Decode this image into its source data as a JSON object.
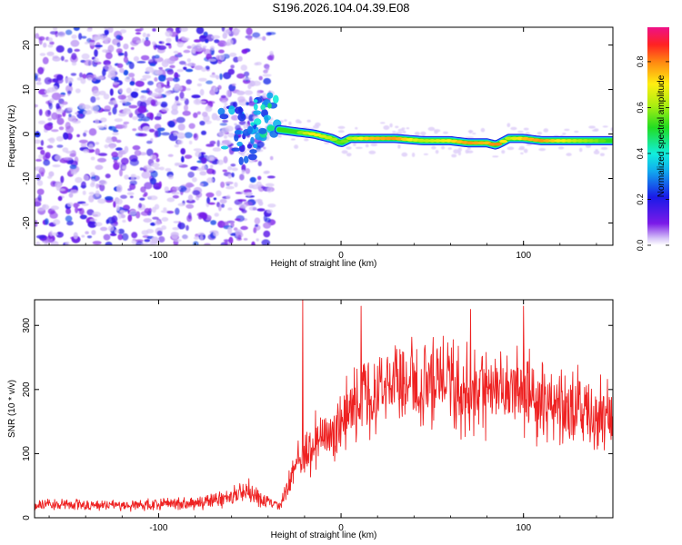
{
  "title": "S196.2026.104.04.39.E08",
  "colors": {
    "snr_line": "#ee2222",
    "background": "#ffffff"
  },
  "chart_data": [
    {
      "type": "heatmap",
      "title": "",
      "xlabel": "Height of straight line (km)",
      "ylabel": "Frequency (Hz)",
      "xlim": [
        -168,
        149
      ],
      "ylim": [
        -25,
        24
      ],
      "xticks": [
        -100,
        0,
        100
      ],
      "xtick_labels": [
        "-100",
        "0",
        "100"
      ],
      "yticks": [
        -20,
        -10,
        0,
        10,
        20
      ],
      "ytick_labels": [
        "-20",
        "-10",
        "0",
        "10",
        "20"
      ],
      "grid": false,
      "colorbar": {
        "label": "Normalized spectral amplitude",
        "range": [
          0,
          0.95
        ],
        "ticks": [
          0.0,
          0.2,
          0.4,
          0.6,
          0.8
        ],
        "tick_labels": [
          "0.0",
          "0.2",
          "0.4",
          "0.6",
          "0.8"
        ],
        "colormap": "rainbow (violet to red)"
      },
      "noise_region": {
        "x_range": [
          -168,
          -38
        ],
        "amplitude_range": [
          0.0,
          0.25
        ]
      },
      "transition_blobs": [
        {
          "x": -60,
          "y": 1,
          "amplitude": 0.3
        },
        {
          "x": -53,
          "y": -2,
          "amplitude": 0.28
        },
        {
          "x": -46,
          "y": 3,
          "amplitude": 0.35
        },
        {
          "x": -40,
          "y": 5,
          "amplitude": 0.4
        }
      ],
      "ridge": {
        "x": [
          -34,
          -25,
          -15,
          -5,
          0,
          5,
          15,
          30,
          45,
          60,
          70,
          80,
          85,
          92,
          100,
          110,
          120,
          130,
          140,
          149
        ],
        "y": [
          1,
          0.5,
          0,
          -1,
          -2,
          -1,
          -1,
          -1,
          -1.5,
          -1.5,
          -2,
          -2,
          -2.5,
          -1,
          -1,
          -1.5,
          -1.5,
          -1.5,
          -1.5,
          -1.5
        ],
        "amplitude": [
          0.35,
          0.6,
          0.8,
          0.7,
          0.6,
          0.7,
          0.85,
          0.9,
          0.7,
          0.8,
          0.9,
          0.85,
          0.95,
          0.7,
          0.85,
          0.9,
          0.8,
          0.7,
          0.65,
          0.55
        ]
      }
    },
    {
      "type": "line",
      "title": "",
      "xlabel": "Height of straight line (km)",
      "ylabel": "SNR (10 * v/v)",
      "xlim": [
        -168,
        149
      ],
      "ylim": [
        0,
        340
      ],
      "xticks": [
        -100,
        0,
        100
      ],
      "xtick_labels": [
        "-100",
        "0",
        "100"
      ],
      "yticks": [
        0,
        100,
        200,
        300
      ],
      "ytick_labels": [
        "0",
        "100",
        "200",
        "300"
      ],
      "grid": false,
      "series": [
        {
          "name": "SNR",
          "envelope_x": [
            -168,
            -120,
            -80,
            -60,
            -50,
            -40,
            -34,
            -28,
            -22,
            -15,
            -5,
            0,
            10,
            20,
            30,
            40,
            50,
            60,
            70,
            80,
            90,
            100,
            110,
            120,
            130,
            140,
            149
          ],
          "envelope_y": [
            20,
            20,
            22,
            32,
            42,
            25,
            18,
            60,
            95,
            110,
            130,
            150,
            180,
            200,
            205,
            210,
            215,
            210,
            205,
            200,
            195,
            200,
            180,
            170,
            165,
            160,
            155
          ],
          "spikes": [
            {
              "x": -21,
              "y": 340
            },
            {
              "x": 11,
              "y": 330
            },
            {
              "x": 71,
              "y": 325
            },
            {
              "x": 100,
              "y": 330
            }
          ]
        }
      ]
    }
  ]
}
